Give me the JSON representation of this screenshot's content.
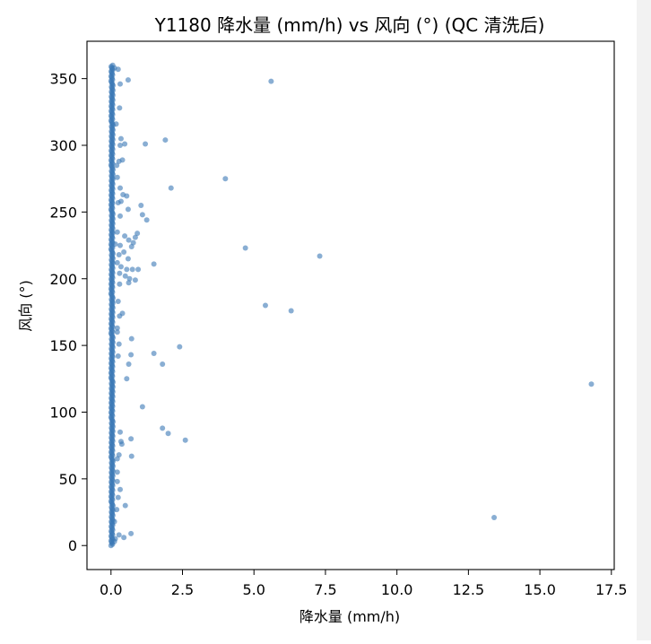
{
  "chart_data": {
    "type": "scatter",
    "title": "Y1180 降水量 (mm/h) vs 风向 (°) (QC 清洗后)",
    "xlabel": "降水量 (mm/h)",
    "ylabel": "风向 (°)",
    "xlim": [
      -0.84,
      17.6
    ],
    "ylim": [
      -18,
      378
    ],
    "xticks": [
      0,
      2.5,
      5,
      7.5,
      10,
      12.5,
      15,
      17.5
    ],
    "xtick_labels": [
      "0.0",
      "2.5",
      "5.0",
      "7.5",
      "10.0",
      "12.5",
      "15.0",
      "17.5"
    ],
    "yticks": [
      0,
      50,
      100,
      150,
      200,
      250,
      300,
      350
    ],
    "ytick_labels": [
      "0",
      "50",
      "100",
      "150",
      "200",
      "250",
      "300",
      "350"
    ],
    "grid": false,
    "legend": "none",
    "colors": {
      "marker": "#3a78b5",
      "axes": "#000000",
      "background": "#ffffff"
    },
    "series": [
      {
        "marker": "circle",
        "dense_column": {
          "x": 0,
          "y_min": 0,
          "y_max": 360
        },
        "points": [
          [
            0.12,
            358
          ],
          [
            0.25,
            357
          ],
          [
            0.6,
            349
          ],
          [
            0.32,
            346
          ],
          [
            5.6,
            348
          ],
          [
            0.3,
            328
          ],
          [
            0.18,
            316
          ],
          [
            0.35,
            305
          ],
          [
            0.48,
            301
          ],
          [
            0.32,
            300
          ],
          [
            1.2,
            301
          ],
          [
            1.9,
            304
          ],
          [
            0.28,
            288
          ],
          [
            0.4,
            289
          ],
          [
            0.2,
            285
          ],
          [
            0.22,
            276
          ],
          [
            4.0,
            275
          ],
          [
            0.32,
            268
          ],
          [
            2.1,
            268
          ],
          [
            0.55,
            262
          ],
          [
            0.42,
            263
          ],
          [
            0.35,
            258
          ],
          [
            0.25,
            257
          ],
          [
            1.05,
            255
          ],
          [
            0.6,
            252
          ],
          [
            1.1,
            248
          ],
          [
            0.32,
            247
          ],
          [
            1.25,
            244
          ],
          [
            0.22,
            235
          ],
          [
            0.92,
            234
          ],
          [
            0.85,
            231
          ],
          [
            0.48,
            232
          ],
          [
            0.62,
            229
          ],
          [
            0.78,
            227
          ],
          [
            0.15,
            226
          ],
          [
            0.32,
            225
          ],
          [
            0.72,
            224
          ],
          [
            4.7,
            223
          ],
          [
            0.45,
            220
          ],
          [
            0.28,
            218
          ],
          [
            7.3,
            217
          ],
          [
            0.6,
            215
          ],
          [
            0.22,
            212
          ],
          [
            1.5,
            211
          ],
          [
            0.35,
            209
          ],
          [
            0.55,
            207
          ],
          [
            0.75,
            207
          ],
          [
            0.95,
            207
          ],
          [
            0.3,
            204
          ],
          [
            0.5,
            202
          ],
          [
            0.65,
            200
          ],
          [
            0.85,
            199
          ],
          [
            0.62,
            197
          ],
          [
            0.3,
            196
          ],
          [
            0.25,
            183
          ],
          [
            5.4,
            180
          ],
          [
            6.3,
            176
          ],
          [
            0.4,
            174
          ],
          [
            0.3,
            172
          ],
          [
            0.22,
            163
          ],
          [
            0.22,
            160
          ],
          [
            0.72,
            155
          ],
          [
            0.28,
            151
          ],
          [
            2.4,
            149
          ],
          [
            1.5,
            144
          ],
          [
            0.7,
            143
          ],
          [
            0.25,
            142
          ],
          [
            0.62,
            136
          ],
          [
            1.8,
            136
          ],
          [
            0.55,
            125
          ],
          [
            16.8,
            121
          ],
          [
            1.1,
            104
          ],
          [
            1.8,
            88
          ],
          [
            0.32,
            85
          ],
          [
            2.0,
            84
          ],
          [
            0.7,
            80
          ],
          [
            2.6,
            79
          ],
          [
            0.35,
            78
          ],
          [
            0.38,
            76
          ],
          [
            0.28,
            68
          ],
          [
            0.72,
            67
          ],
          [
            0.22,
            65
          ],
          [
            0.22,
            55
          ],
          [
            0.22,
            48
          ],
          [
            0.32,
            42
          ],
          [
            0.25,
            36
          ],
          [
            0.5,
            30
          ],
          [
            0.2,
            27
          ],
          [
            13.4,
            21
          ],
          [
            0.12,
            18
          ],
          [
            0.7,
            9
          ],
          [
            0.28,
            8
          ],
          [
            0.45,
            6
          ],
          [
            0.15,
            5
          ],
          [
            0.12,
            3
          ]
        ]
      }
    ]
  }
}
